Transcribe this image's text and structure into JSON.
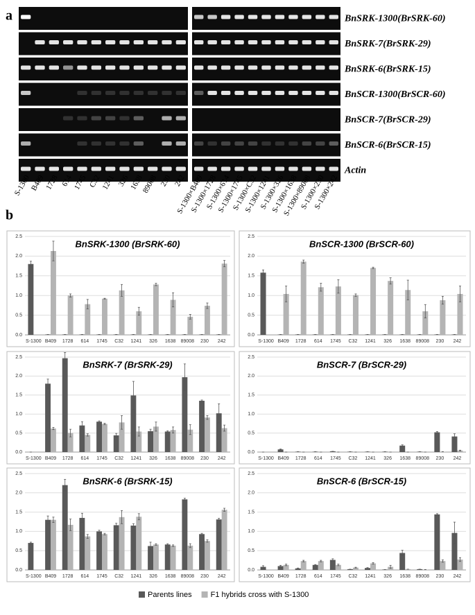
{
  "panel_a": {
    "label": "a",
    "gene_labels": [
      "BnSRK-1300(BrSRK-60)",
      "BnSRK-7(BrSRK-29)",
      "BnSRK-6(BrSRK-15)",
      "BnSCR-1300(BrSCR-60)",
      "BnSCR-7(BrSCR-29)",
      "BnSCR-6(BrSCR-15)",
      "Actin"
    ],
    "lanes_left": [
      "S-1300",
      "B409",
      "1728",
      "614",
      "1745",
      "C32",
      "1241",
      "326",
      "1638",
      "89008",
      "230",
      "242"
    ],
    "lanes_right": [
      "S-1300×B409",
      "S-1300×1728",
      "S-1300×614",
      "S-1300×1745",
      "S-1300×C32",
      "S-1300×1241",
      "S-1300×326",
      "S-1300×1638",
      "S-1300×89008",
      "S-1300×230",
      "S-1300×242"
    ]
  },
  "panel_b_label": "b",
  "legend": [
    {
      "name": "Parents lines",
      "color": "#595959"
    },
    {
      "name": "F1 hybrids cross with S-1300",
      "color": "#b4b4b4"
    }
  ],
  "chart_data": [
    {
      "type": "bar",
      "title": "BnSRK-1300 (BrSRK-60)",
      "categories": [
        "S-1300",
        "B409",
        "1728",
        "614",
        "1745",
        "C32",
        "1241",
        "326",
        "1638",
        "89008",
        "230",
        "242"
      ],
      "ylim": [
        0,
        2.5
      ],
      "yticks": [
        {
          "value": 0,
          "label": "0.0"
        },
        0.5,
        {
          "value": 1,
          "label": "1.0"
        },
        1.5,
        {
          "value": 2,
          "label": "2.0"
        },
        2.5
      ],
      "grid": true,
      "series": [
        {
          "values": [
            1.8,
            0.01,
            0.01,
            0.01,
            0.01,
            0.01,
            0.01,
            0.01,
            0.01,
            0.01,
            0.01,
            0.01
          ],
          "errors": [
            0.07,
            0,
            0,
            0,
            0,
            0,
            0,
            0,
            0,
            0,
            0,
            0
          ]
        },
        {
          "values": [
            null,
            2.13,
            1.0,
            0.78,
            0.92,
            1.13,
            0.6,
            1.28,
            0.89,
            0.46,
            0.74,
            1.81
          ],
          "errors": [
            null,
            0.25,
            0.04,
            0.12,
            0.01,
            0.15,
            0.1,
            0.03,
            0.18,
            0.06,
            0.07,
            0.08
          ]
        }
      ]
    },
    {
      "type": "bar",
      "title": "BnSCR-1300 (BrSCR-60)",
      "categories": [
        "S-1300",
        "B409",
        "1728",
        "614",
        "1745",
        "C32",
        "1241",
        "326",
        "1638",
        "89008",
        "230",
        "242"
      ],
      "ylim": [
        0,
        2.5
      ],
      "yticks": [
        {
          "value": 0,
          "label": "0.0"
        },
        0.5,
        {
          "value": 1,
          "label": "1.0"
        },
        1.5,
        {
          "value": 2,
          "label": "2.0"
        },
        2.5
      ],
      "grid": true,
      "series": [
        {
          "values": [
            1.58,
            0.01,
            0.01,
            0.01,
            0.01,
            0.01,
            0.01,
            0.01,
            0.01,
            0.01,
            0.01,
            0.01
          ],
          "errors": [
            0.07,
            0,
            0,
            0,
            0,
            0,
            0,
            0,
            0,
            0,
            0,
            0
          ]
        },
        {
          "values": [
            null,
            1.04,
            1.86,
            1.21,
            1.23,
            1.01,
            1.7,
            1.37,
            1.14,
            0.6,
            0.88,
            1.04
          ],
          "errors": [
            null,
            0.2,
            0.04,
            0.1,
            0.17,
            0.03,
            0.02,
            0.08,
            0.25,
            0.17,
            0.1,
            0.2
          ]
        }
      ]
    },
    {
      "type": "bar",
      "title": "BnSRK-7 (BrSRK-29)",
      "categories": [
        "S-1300",
        "B409",
        "1728",
        "614",
        "1745",
        "C32",
        "1241",
        "326",
        "1638",
        "89008",
        "230",
        "242"
      ],
      "ylim": [
        0,
        2.5
      ],
      "yticks": [
        {
          "value": 0,
          "label": "0.0"
        },
        0.5,
        {
          "value": 1,
          "label": "1.0"
        },
        1.5,
        {
          "value": 2,
          "label": "2.0"
        },
        2.5
      ],
      "grid": true,
      "series": [
        {
          "values": [
            0,
            1.8,
            2.47,
            0.7,
            0.8,
            0.44,
            1.49,
            0.55,
            0.54,
            1.97,
            1.35,
            1.02
          ],
          "errors": [
            0,
            0.12,
            0.15,
            0.1,
            0.02,
            0.05,
            0.37,
            0.05,
            0.02,
            0.35,
            0.02,
            0.25
          ]
        },
        {
          "values": [
            null,
            0.62,
            0.5,
            0.45,
            0.74,
            0.78,
            0.54,
            0.67,
            0.58,
            0.59,
            0.91,
            0.63
          ],
          "errors": [
            null,
            0.03,
            0.1,
            0.03,
            0.02,
            0.18,
            0.12,
            0.12,
            0.08,
            0.13,
            0.05,
            0.08
          ]
        }
      ]
    },
    {
      "type": "bar",
      "title": "BnSCR-7 (BrSCR-29)",
      "categories": [
        "S-1300",
        "B409",
        "1728",
        "614",
        "1745",
        "C32",
        "1241",
        "326",
        "1638",
        "89008",
        "230",
        "242"
      ],
      "ylim": [
        0,
        2.5
      ],
      "yticks": [
        {
          "value": 0,
          "label": "0.0"
        },
        0.5,
        {
          "value": 1,
          "label": "1.0"
        },
        1.5,
        {
          "value": 2,
          "label": "2.0"
        },
        2.5
      ],
      "grid": true,
      "series": [
        {
          "values": [
            0,
            0.07,
            0.01,
            0.01,
            0.02,
            0.01,
            0.01,
            0.01,
            0.17,
            0.01,
            0.52,
            0.41
          ],
          "errors": [
            0,
            0.01,
            0,
            0,
            0,
            0,
            0,
            0,
            0.02,
            0,
            0.02,
            0.07
          ]
        },
        {
          "values": [
            null,
            0,
            0,
            0,
            0,
            0,
            0,
            0,
            0,
            0,
            0.01,
            0.04
          ],
          "errors": [
            null,
            0,
            0,
            0,
            0,
            0,
            0,
            0,
            0,
            0,
            0,
            0.01
          ]
        }
      ]
    },
    {
      "type": "bar",
      "title": "BnSRK-6 (BrSRK-15)",
      "categories": [
        "S-1300",
        "B409",
        "1728",
        "614",
        "1745",
        "C32",
        "1241",
        "326",
        "1638",
        "89008",
        "230",
        "242"
      ],
      "ylim": [
        0,
        2.5
      ],
      "yticks": [
        {
          "value": 0,
          "label": "0.0"
        },
        0.5,
        {
          "value": 1,
          "label": "1.0"
        },
        1.5,
        {
          "value": 2,
          "label": "2.0"
        },
        2.5
      ],
      "grid": true,
      "series": [
        {
          "values": [
            0.7,
            1.3,
            2.2,
            1.35,
            1.0,
            1.16,
            1.15,
            0.62,
            0.66,
            1.83,
            0.93,
            1.31
          ],
          "errors": [
            0.02,
            0.1,
            0.15,
            0.12,
            0.03,
            0.05,
            0.05,
            0.1,
            0.02,
            0.03,
            0.02,
            0.03
          ]
        },
        {
          "values": [
            null,
            1.3,
            1.17,
            0.87,
            0.93,
            1.37,
            1.38,
            0.66,
            0.63,
            0.63,
            0.75,
            1.56
          ],
          "errors": [
            null,
            0.07,
            0.15,
            0.05,
            0.02,
            0.17,
            0.08,
            0.02,
            0.02,
            0.05,
            0.03,
            0.04
          ]
        }
      ]
    },
    {
      "type": "bar",
      "title": "BnSCR-6 (BrSCR-15)",
      "categories": [
        "S-1300",
        "B409",
        "1728",
        "614",
        "1745",
        "C32",
        "1241",
        "326",
        "1638",
        "89008",
        "230",
        "242"
      ],
      "ylim": [
        0,
        2.5
      ],
      "yticks": [
        {
          "value": 0,
          "label": "0.0"
        },
        0.5,
        {
          "value": 1,
          "label": "1.0"
        },
        1.5,
        {
          "value": 2,
          "label": "2.0"
        },
        2.5
      ],
      "grid": true,
      "series": [
        {
          "values": [
            0.08,
            0.1,
            0.04,
            0.13,
            0.26,
            0.02,
            0.05,
            0.01,
            0.44,
            0.02,
            1.44,
            0.96
          ],
          "errors": [
            0.03,
            0.02,
            0.01,
            0.01,
            0.03,
            0,
            0.01,
            0,
            0.07,
            0,
            0.02,
            0.28
          ]
        },
        {
          "values": [
            null,
            0.13,
            0.23,
            0.23,
            0.13,
            0.06,
            0.17,
            0.08,
            0.02,
            0.01,
            0.23,
            0.27
          ],
          "errors": [
            null,
            0.02,
            0.02,
            0.02,
            0.02,
            0.01,
            0.02,
            0.04,
            0,
            0,
            0.03,
            0.05
          ]
        }
      ]
    }
  ]
}
